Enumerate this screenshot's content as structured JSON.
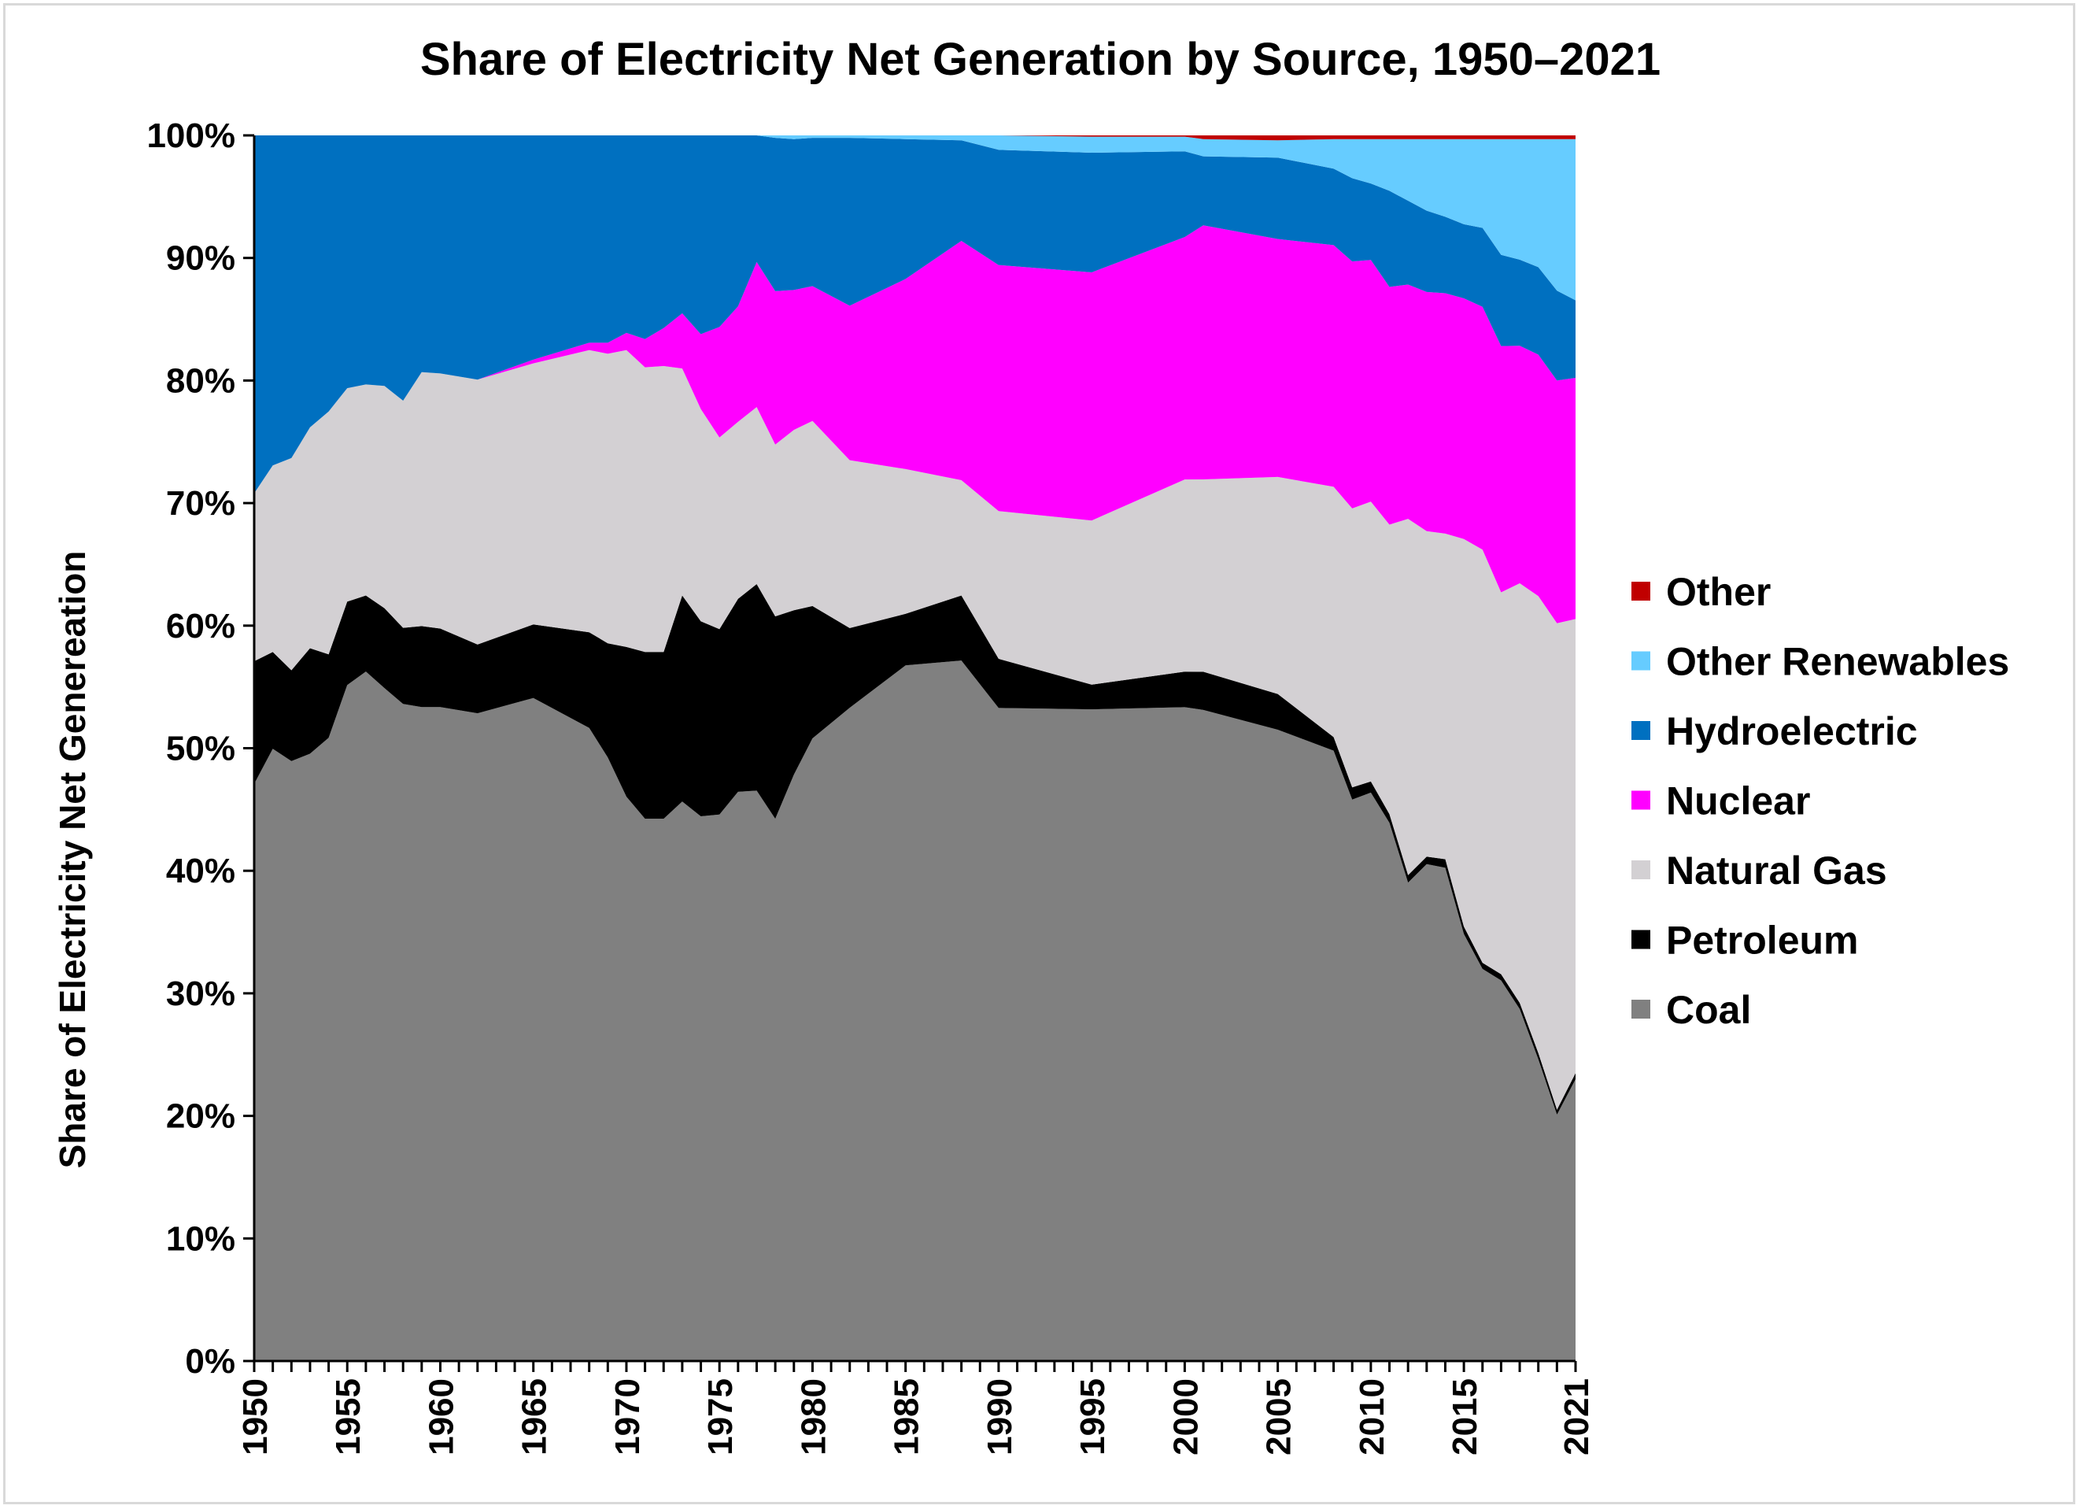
{
  "chart_data": {
    "type": "area",
    "stacked": true,
    "percent": true,
    "title": "Share of Electricity Net Generation by Source, 1950–2021",
    "xlabel": "",
    "ylabel": "Share of Electricity Net Genereation",
    "ylim": [
      0,
      100
    ],
    "y_ticks": [
      "0%",
      "10%",
      "20%",
      "30%",
      "40%",
      "50%",
      "60%",
      "70%",
      "80%",
      "90%",
      "100%"
    ],
    "x_ticks": [
      "1950",
      "1955",
      "1960",
      "1965",
      "1970",
      "1975",
      "1980",
      "1985",
      "1990",
      "1995",
      "2000",
      "2005",
      "2010",
      "2015",
      "2021"
    ],
    "legend_position": "right",
    "x_anchor": [
      1950,
      1951,
      1952,
      1953,
      1954,
      1955,
      1956,
      1957,
      1958,
      1959,
      1960,
      1962,
      1965,
      1968,
      1969,
      1970,
      1971,
      1972,
      1973,
      1974,
      1975,
      1976,
      1977,
      1978,
      1979,
      1980,
      1982,
      1985,
      1988,
      1990,
      1995,
      2000,
      2001,
      2005,
      2008,
      2009,
      2010,
      2011,
      2012,
      2013,
      2014,
      2015,
      2016,
      2017,
      2018,
      2019,
      2020,
      2021
    ],
    "series": [
      {
        "name": "Coal",
        "color": "#808080",
        "values": [
          47.1,
          49.9,
          48.9,
          49.5,
          50.8,
          55.1,
          56.2,
          54.8,
          53.5,
          53.3,
          53.3,
          52.8,
          54.1,
          51.6,
          49.2,
          46.0,
          44.2,
          44.2,
          45.6,
          44.4,
          44.5,
          46.3,
          46.4,
          44.2,
          47.8,
          50.8,
          53.3,
          56.7,
          57.1,
          54.4,
          52.8,
          53.4,
          52.8,
          51.2,
          49.5,
          45.9,
          46.1,
          43.7,
          38.8,
          40.3,
          40.0,
          34.6,
          31.8,
          30.9,
          28.6,
          24.5,
          20.0,
          22.9
        ]
      },
      {
        "name": "Petroleum",
        "color": "#000000",
        "values": [
          10.0,
          7.9,
          7.4,
          8.6,
          6.8,
          6.8,
          6.2,
          6.5,
          6.2,
          6.6,
          6.4,
          5.6,
          6.0,
          7.8,
          9.3,
          12.2,
          13.6,
          13.6,
          16.8,
          15.9,
          15.1,
          15.7,
          16.8,
          16.5,
          13.4,
          10.8,
          6.5,
          4.2,
          5.3,
          4.1,
          2.0,
          2.9,
          3.1,
          2.9,
          1.1,
          1.0,
          0.9,
          0.7,
          0.6,
          0.6,
          0.7,
          0.6,
          0.5,
          0.5,
          0.5,
          0.5,
          0.4,
          0.5
        ]
      },
      {
        "name": "Natural Gas",
        "color": "#d3d0d3",
        "values": [
          13.7,
          15.2,
          17.3,
          18.0,
          19.8,
          17.4,
          17.2,
          18.1,
          18.5,
          20.7,
          20.8,
          21.6,
          21.3,
          23.0,
          23.6,
          24.2,
          23.2,
          23.3,
          18.5,
          17.3,
          15.6,
          14.4,
          14.4,
          14.0,
          14.7,
          15.1,
          13.7,
          11.8,
          9.4,
          12.3,
          13.3,
          15.7,
          15.6,
          17.6,
          20.3,
          22.8,
          22.7,
          23.5,
          28.9,
          26.4,
          26.4,
          31.4,
          33.5,
          31.0,
          34.1,
          37.1,
          39.5,
          36.9
        ]
      },
      {
        "name": "Nuclear",
        "color": "#ff00ff",
        "values": [
          0,
          0,
          0,
          0,
          0,
          0,
          0,
          0,
          0,
          0,
          0,
          0,
          0.3,
          0.6,
          0.9,
          1.4,
          2.3,
          3.1,
          4.5,
          6.1,
          9.0,
          9.4,
          11.8,
          12.5,
          11.4,
          11.0,
          12.6,
          15.5,
          19.5,
          20.5,
          20.1,
          19.8,
          20.6,
          19.3,
          19.6,
          20.2,
          19.6,
          19.3,
          19.0,
          19.4,
          19.5,
          19.5,
          19.7,
          20.0,
          19.3,
          19.6,
          19.7,
          19.6
        ]
      },
      {
        "name": "Hydroelectric",
        "color": "#0070c0",
        "values": [
          29.2,
          26.9,
          26.3,
          23.8,
          22.5,
          20.6,
          20.3,
          20.4,
          21.6,
          19.3,
          19.4,
          19.9,
          18.3,
          16.9,
          16.9,
          16.1,
          16.6,
          15.7,
          14.5,
          16.2,
          15.6,
          13.9,
          10.3,
          12.5,
          12.3,
          12.1,
          13.7,
          11.4,
          8.2,
          9.6,
          9.7,
          7.0,
          5.6,
          6.6,
          6.2,
          6.8,
          6.2,
          7.8,
          6.8,
          6.6,
          6.2,
          6.0,
          6.4,
          7.4,
          7.0,
          7.1,
          7.3,
          6.3
        ]
      },
      {
        "name": "Other Renewables",
        "color": "#66ccff",
        "values": [
          0,
          0,
          0,
          0,
          0,
          0,
          0,
          0,
          0,
          0,
          0,
          0,
          0,
          0,
          0,
          0,
          0,
          0,
          0,
          0,
          0,
          0,
          0,
          0.2,
          0.3,
          0.2,
          0.2,
          0.3,
          0.4,
          1.2,
          1.3,
          1.2,
          1.4,
          1.4,
          2.4,
          3.2,
          3.6,
          4.2,
          5.0,
          5.8,
          6.3,
          6.9,
          7.2,
          9.4,
          9.8,
          10.4,
          12.3,
          13.1
        ]
      },
      {
        "name": "Other",
        "color": "#c00000",
        "values": [
          0,
          0,
          0,
          0,
          0,
          0,
          0,
          0,
          0,
          0,
          0,
          0,
          0,
          0,
          0,
          0,
          0,
          0,
          0,
          0,
          0,
          0,
          0,
          0,
          0,
          0,
          0,
          0,
          0,
          0,
          0.1,
          0.1,
          0.3,
          0.4,
          0.3,
          0.3,
          0.3,
          0.3,
          0.3,
          0.3,
          0.3,
          0.3,
          0.3,
          0.3,
          0.3,
          0.3,
          0.3,
          0.3
        ]
      }
    ],
    "legend_order": [
      "Other",
      "Other Renewables",
      "Hydroelectric",
      "Nuclear",
      "Natural Gas",
      "Petroleum",
      "Coal"
    ]
  }
}
